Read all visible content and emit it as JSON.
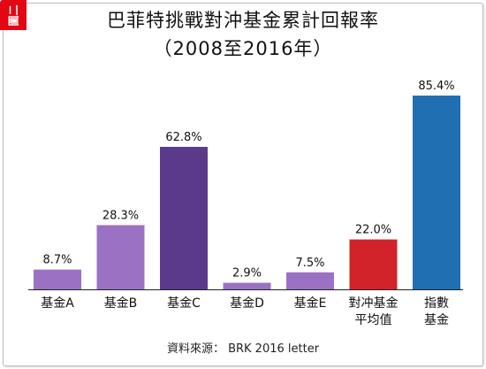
{
  "badge_label": "圖二",
  "chart_data": {
    "type": "bar",
    "title": "巴菲特挑戰對沖基金累計回報率",
    "subtitle": "（2008至2016年）",
    "categories": [
      [
        "基金A"
      ],
      [
        "基金B"
      ],
      [
        "基金C"
      ],
      [
        "基金D"
      ],
      [
        "基金E"
      ],
      [
        "對冲基金",
        "平均值"
      ],
      [
        "指數",
        "基金"
      ]
    ],
    "values": [
      8.7,
      28.3,
      62.8,
      2.9,
      7.5,
      22.0,
      85.4
    ],
    "value_labels": [
      "8.7%",
      "28.3%",
      "62.8%",
      "2.9%",
      "7.5%",
      "22.0%",
      "85.4%"
    ],
    "bar_colors": [
      "#9b71c4",
      "#9b71c4",
      "#5b3a8c",
      "#9b71c4",
      "#9b71c4",
      "#d2232a",
      "#1f6fb2"
    ],
    "ylim": [
      0,
      85.4
    ],
    "grid": false,
    "xlabel": "",
    "ylabel": ""
  },
  "source_text": "資料來源：  BRK 2016 letter"
}
